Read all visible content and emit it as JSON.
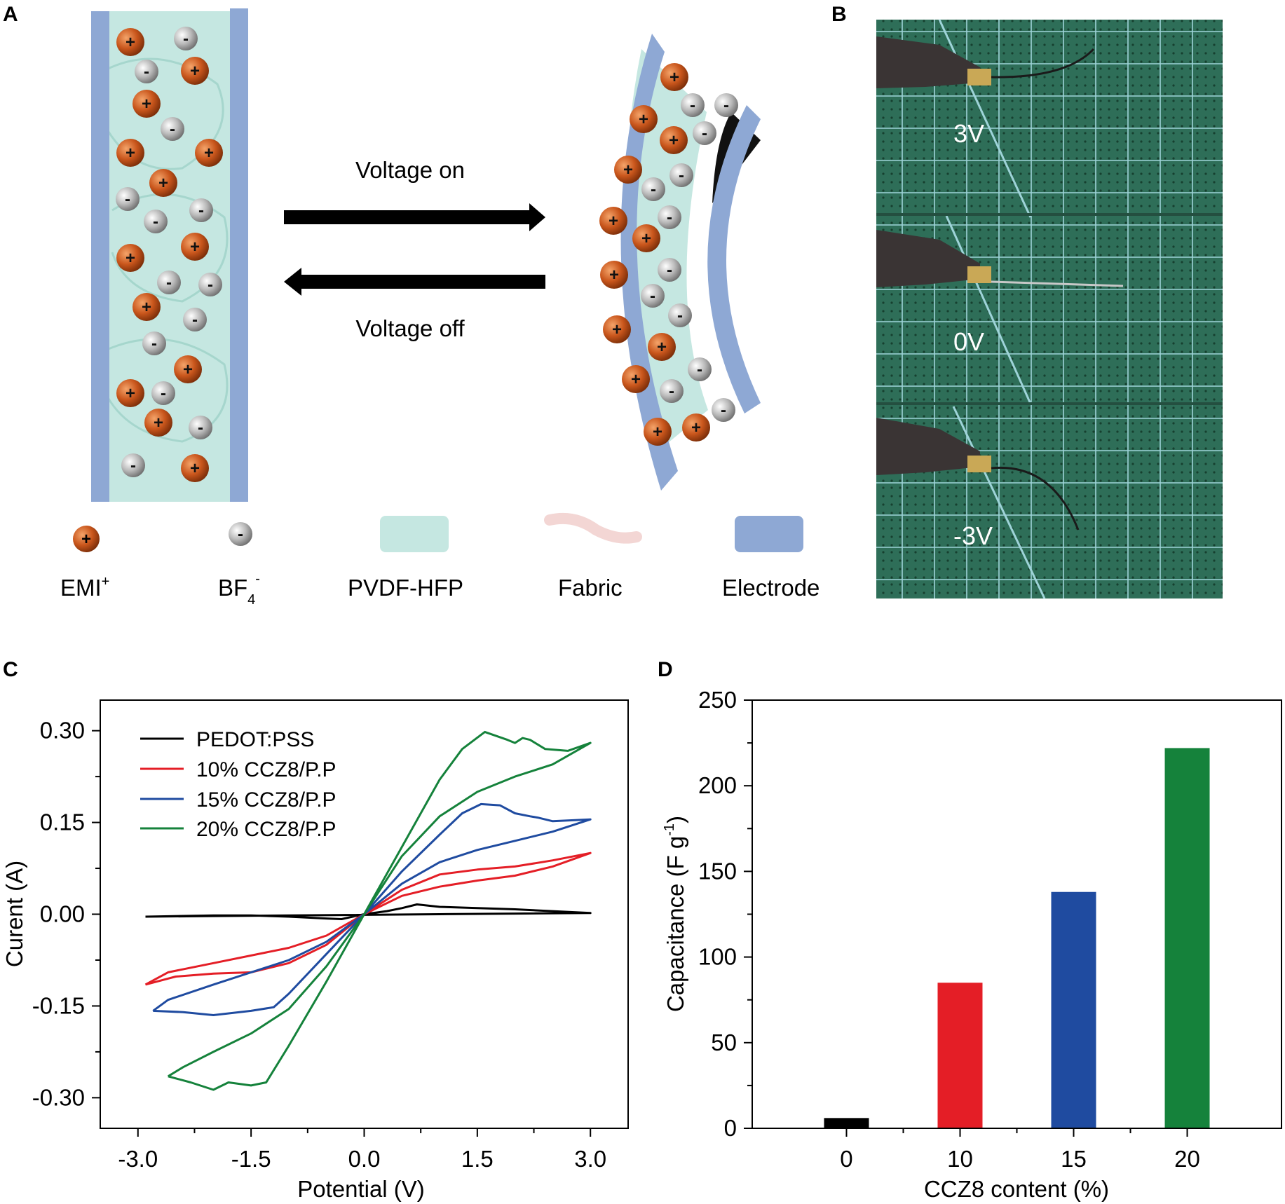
{
  "panels": {
    "a": "A",
    "b": "B",
    "c": "C",
    "d": "D"
  },
  "schematic": {
    "voltage_on": "Voltage on",
    "voltage_off": "Voltage off",
    "legend": {
      "emi": "EMI",
      "emi_sup": "+",
      "bf": "BF",
      "bf_sub": "4",
      "bf_sup": "-",
      "pvdf": "PVDF-HFP",
      "fabric": "Fabric",
      "electrode": "Electrode"
    },
    "plus_sign": "+",
    "minus_sign": "-"
  },
  "photo": {
    "labels": [
      "3V",
      "0V",
      "-3V"
    ]
  },
  "colors": {
    "cation": "#c9561c",
    "anion": "#a8a8a8",
    "gel": "#c5e7e1",
    "electrode": "#8ea8d4",
    "fabric": "#f3d6d4",
    "mat": "#2e6e58",
    "black": "#000000",
    "red": "#e41e26",
    "blue": "#1f4ba0",
    "green": "#15823b"
  },
  "chart_data": [
    {
      "type": "line",
      "xlabel": "Potential (V)",
      "ylabel": "Curent (A)",
      "xlim": [
        -3.5,
        3.5
      ],
      "ylim": [
        -0.35,
        0.35
      ],
      "xticks": [
        "-3.0",
        "-1.5",
        "0.0",
        "1.5",
        "3.0"
      ],
      "xtick_values": [
        -3.0,
        -1.5,
        0.0,
        1.5,
        3.0
      ],
      "yticks": [
        "0.30",
        "0.15",
        "0.00",
        "-0.15",
        "-0.30"
      ],
      "ytick_values": [
        0.3,
        0.15,
        0.0,
        -0.15,
        -0.3
      ],
      "legend_position": "top-left",
      "series": [
        {
          "name": "PEDOT:PSS",
          "color": "#000000",
          "upper": [
            [
              -2.9,
              -0.004
            ],
            [
              -2.0,
              -0.002
            ],
            [
              -1.5,
              -0.002
            ],
            [
              -1.0,
              -0.004
            ],
            [
              -0.5,
              -0.007
            ],
            [
              -0.3,
              -0.008
            ],
            [
              0,
              0
            ],
            [
              0.3,
              0.005
            ],
            [
              0.5,
              0.01
            ],
            [
              0.7,
              0.016
            ],
            [
              1.0,
              0.012
            ],
            [
              2.0,
              0.008
            ],
            [
              3.0,
              0.002
            ]
          ],
          "lower": [
            [
              -2.9,
              -0.004
            ],
            [
              -2.0,
              -0.003
            ],
            [
              -1.0,
              -0.002
            ],
            [
              0,
              -0.001
            ],
            [
              1.0,
              0.0
            ],
            [
              2.0,
              0.001
            ],
            [
              3.0,
              0.002
            ]
          ]
        },
        {
          "name": "10% CCZ8/P.P",
          "color": "#e41e26",
          "upper": [
            [
              -2.9,
              -0.115
            ],
            [
              -2.6,
              -0.095
            ],
            [
              -2.0,
              -0.08
            ],
            [
              -1.0,
              -0.055
            ],
            [
              -0.5,
              -0.035
            ],
            [
              0,
              0
            ],
            [
              0.5,
              0.04
            ],
            [
              1.0,
              0.065
            ],
            [
              1.5,
              0.073
            ],
            [
              2.0,
              0.078
            ],
            [
              2.5,
              0.088
            ],
            [
              3.0,
              0.1
            ]
          ],
          "lower": [
            [
              -2.9,
              -0.115
            ],
            [
              -2.5,
              -0.102
            ],
            [
              -2.0,
              -0.097
            ],
            [
              -1.5,
              -0.095
            ],
            [
              -1.0,
              -0.08
            ],
            [
              -0.5,
              -0.05
            ],
            [
              0,
              0
            ],
            [
              0.5,
              0.03
            ],
            [
              1.0,
              0.045
            ],
            [
              1.5,
              0.055
            ],
            [
              2.0,
              0.063
            ],
            [
              2.5,
              0.078
            ],
            [
              3.0,
              0.1
            ]
          ]
        },
        {
          "name": "15% CCZ8/P.P",
          "color": "#1f4ba0",
          "upper": [
            [
              -2.8,
              -0.158
            ],
            [
              -2.6,
              -0.14
            ],
            [
              -2.0,
              -0.115
            ],
            [
              -1.0,
              -0.075
            ],
            [
              -0.5,
              -0.045
            ],
            [
              0,
              0
            ],
            [
              0.5,
              0.07
            ],
            [
              1.0,
              0.13
            ],
            [
              1.3,
              0.165
            ],
            [
              1.55,
              0.18
            ],
            [
              1.8,
              0.178
            ],
            [
              2.0,
              0.165
            ],
            [
              2.2,
              0.16
            ],
            [
              2.3,
              0.158
            ],
            [
              2.5,
              0.152
            ],
            [
              3.0,
              0.155
            ]
          ],
          "lower": [
            [
              -2.8,
              -0.158
            ],
            [
              -2.4,
              -0.16
            ],
            [
              -2.0,
              -0.165
            ],
            [
              -1.5,
              -0.158
            ],
            [
              -1.2,
              -0.152
            ],
            [
              -1.0,
              -0.13
            ],
            [
              -0.5,
              -0.065
            ],
            [
              0,
              0
            ],
            [
              0.5,
              0.05
            ],
            [
              1.0,
              0.085
            ],
            [
              1.5,
              0.105
            ],
            [
              2.0,
              0.12
            ],
            [
              2.5,
              0.135
            ],
            [
              3.0,
              0.155
            ]
          ]
        },
        {
          "name": "20% CCZ8/P.P",
          "color": "#15823b",
          "upper": [
            [
              -2.6,
              -0.265
            ],
            [
              -2.4,
              -0.25
            ],
            [
              -2.0,
              -0.225
            ],
            [
              -1.5,
              -0.195
            ],
            [
              -1.0,
              -0.155
            ],
            [
              -0.5,
              -0.085
            ],
            [
              0,
              0
            ],
            [
              0.5,
              0.11
            ],
            [
              1.0,
              0.22
            ],
            [
              1.3,
              0.27
            ],
            [
              1.6,
              0.298
            ],
            [
              1.9,
              0.285
            ],
            [
              2.0,
              0.28
            ],
            [
              2.1,
              0.288
            ],
            [
              2.2,
              0.285
            ],
            [
              2.4,
              0.27
            ],
            [
              2.7,
              0.267
            ],
            [
              3.0,
              0.28
            ]
          ],
          "lower": [
            [
              -2.6,
              -0.265
            ],
            [
              -2.3,
              -0.275
            ],
            [
              -2.0,
              -0.287
            ],
            [
              -1.8,
              -0.275
            ],
            [
              -1.5,
              -0.28
            ],
            [
              -1.3,
              -0.275
            ],
            [
              -1.0,
              -0.215
            ],
            [
              -0.5,
              -0.11
            ],
            [
              0,
              0
            ],
            [
              0.5,
              0.095
            ],
            [
              1.0,
              0.16
            ],
            [
              1.5,
              0.2
            ],
            [
              2.0,
              0.225
            ],
            [
              2.5,
              0.245
            ],
            [
              3.0,
              0.28
            ]
          ]
        }
      ]
    },
    {
      "type": "bar",
      "categories": [
        "0",
        "10",
        "15",
        "20"
      ],
      "values": [
        6,
        85,
        138,
        222
      ],
      "colors": [
        "#000000",
        "#e41e26",
        "#1f4ba0",
        "#15823b"
      ],
      "xlabel": "CCZ8 content (%)",
      "ylabel": "Capacitance (F g",
      "ylabel_sup": "-1",
      "ylabel_end": ")",
      "ylim": [
        0,
        250
      ],
      "yticks": [
        "0",
        "50",
        "100",
        "150",
        "200",
        "250"
      ],
      "ytick_values": [
        0,
        50,
        100,
        150,
        200,
        250
      ]
    }
  ]
}
